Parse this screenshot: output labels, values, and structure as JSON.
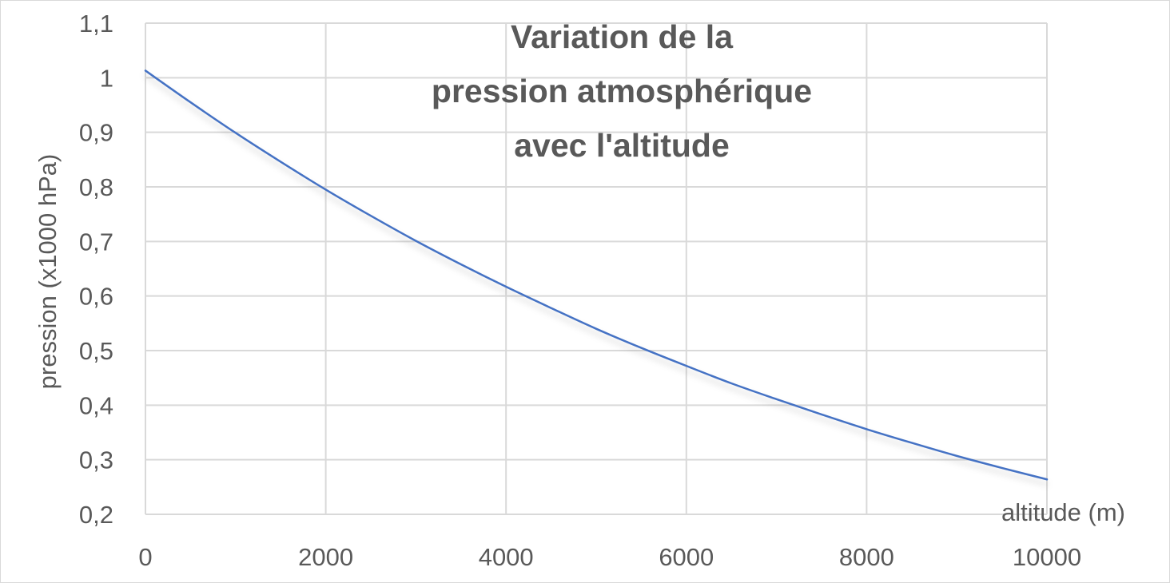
{
  "chart_data": {
    "type": "line",
    "title_lines": [
      "Variation de la",
      "pression atmosphérique",
      "avec l'altitude"
    ],
    "xlabel": "altitude (m)",
    "ylabel": "pression (x1000 hPa)",
    "xlim": [
      0,
      10000
    ],
    "ylim": [
      0.2,
      1.1
    ],
    "x_ticks": [
      0,
      2000,
      4000,
      6000,
      8000,
      10000
    ],
    "x_tick_labels": [
      "0",
      "2000",
      "4000",
      "6000",
      "8000",
      "10000"
    ],
    "y_ticks": [
      0.2,
      0.3,
      0.4,
      0.5,
      0.6,
      0.7,
      0.8,
      0.9,
      1.0,
      1.1
    ],
    "y_tick_labels": [
      "0,2",
      "0,3",
      "0,4",
      "0,5",
      "0,6",
      "0,7",
      "0,8",
      "0,9",
      "1",
      "1,1"
    ],
    "grid": true,
    "legend": "none",
    "line_color": "#4472c4",
    "series": [
      {
        "x": [
          0,
          500,
          1000,
          1500,
          2000,
          2500,
          3000,
          3500,
          4000,
          4500,
          5000,
          5500,
          6000,
          6500,
          7000,
          7500,
          8000,
          8500,
          9000,
          9500,
          10000
        ],
        "values": [
          1.013,
          0.955,
          0.899,
          0.846,
          0.795,
          0.747,
          0.701,
          0.658,
          0.617,
          0.578,
          0.54,
          0.505,
          0.472,
          0.44,
          0.411,
          0.383,
          0.356,
          0.331,
          0.307,
          0.285,
          0.264
        ]
      }
    ]
  }
}
